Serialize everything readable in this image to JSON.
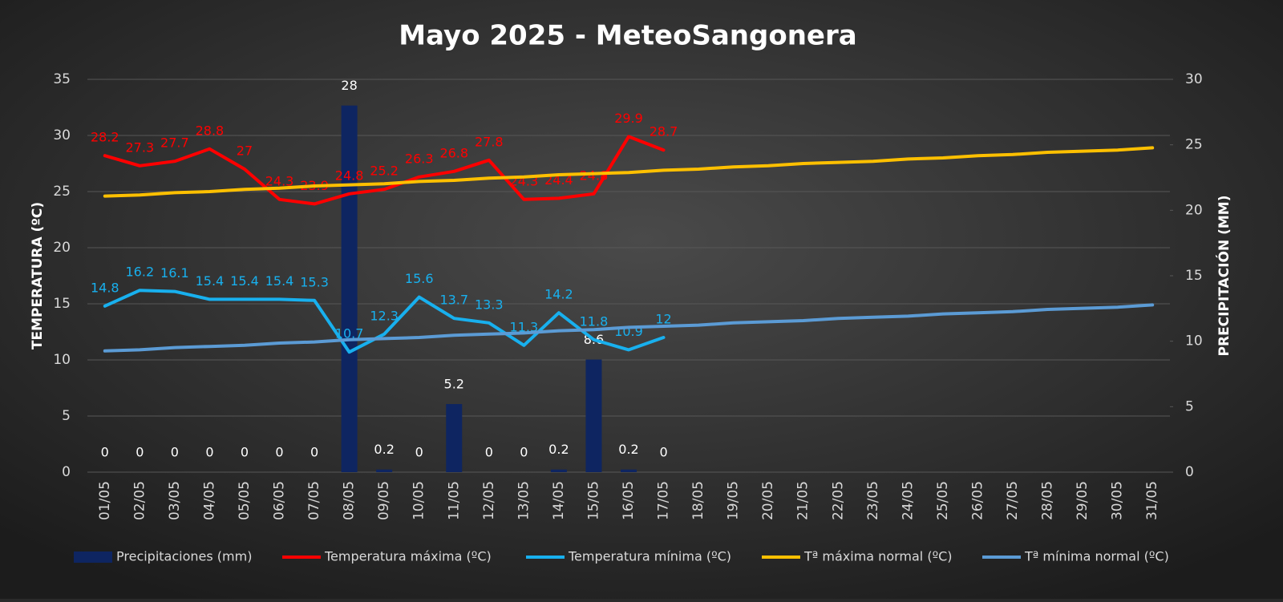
{
  "chart_data": {
    "type": "combo",
    "title": "Mayo 2025 - MeteoSangonera",
    "y_label": "TEMPERATURA (ºC)",
    "y2_label": "PRECIPITACIÓN (MM)",
    "categories": [
      "01/05",
      "02/05",
      "03/05",
      "04/05",
      "05/05",
      "06/05",
      "07/05",
      "08/05",
      "09/05",
      "10/05",
      "11/05",
      "12/05",
      "13/05",
      "14/05",
      "15/05",
      "16/05",
      "17/05",
      "18/05",
      "19/05",
      "20/05",
      "21/05",
      "22/05",
      "23/05",
      "24/05",
      "25/05",
      "26/05",
      "27/05",
      "28/05",
      "29/05",
      "30/05",
      "31/05"
    ],
    "ylim": [
      0,
      35
    ],
    "yticks": [
      0,
      5,
      10,
      15,
      20,
      25,
      30,
      35
    ],
    "y2lim": [
      0,
      30
    ],
    "y2ticks": [
      0,
      5,
      10,
      15,
      20,
      25,
      30
    ],
    "grid": true,
    "legend": "bottom",
    "series": [
      {
        "name": "Precipitaciones (mm)",
        "type": "bar",
        "axis": "y2",
        "color": "#0e2561",
        "data_labels": true,
        "values": [
          0,
          0,
          0,
          0,
          0,
          0,
          0,
          28,
          0.2,
          0,
          5.2,
          0,
          0,
          0.2,
          8.6,
          0.2,
          0,
          null,
          null,
          null,
          null,
          null,
          null,
          null,
          null,
          null,
          null,
          null,
          null,
          null,
          null
        ]
      },
      {
        "name": "Temperatura máxima (ºC)",
        "type": "line",
        "color": "#ff0000",
        "data_labels": true,
        "values": [
          28.2,
          27.3,
          27.7,
          28.8,
          27,
          24.3,
          23.9,
          24.8,
          25.2,
          26.3,
          26.8,
          27.8,
          24.3,
          24.4,
          24.8,
          29.9,
          28.7,
          null,
          null,
          null,
          null,
          null,
          null,
          null,
          null,
          null,
          null,
          null,
          null,
          null,
          null
        ]
      },
      {
        "name": "Temperatura mínima (ºC)",
        "type": "line",
        "color": "#18b0ee",
        "data_labels": true,
        "values": [
          14.8,
          16.2,
          16.1,
          15.4,
          15.4,
          15.4,
          15.3,
          10.7,
          12.3,
          15.6,
          13.7,
          13.3,
          11.3,
          14.2,
          11.8,
          10.9,
          12,
          null,
          null,
          null,
          null,
          null,
          null,
          null,
          null,
          null,
          null,
          null,
          null,
          null,
          null
        ]
      },
      {
        "name": "Tª máxima normal (ºC)",
        "type": "line",
        "color": "#ffc000",
        "data_labels": false,
        "values": [
          24.6,
          24.7,
          24.9,
          25.0,
          25.2,
          25.3,
          25.5,
          25.6,
          25.7,
          25.9,
          26.0,
          26.2,
          26.3,
          26.5,
          26.6,
          26.7,
          26.9,
          27.0,
          27.2,
          27.3,
          27.5,
          27.6,
          27.7,
          27.9,
          28.0,
          28.2,
          28.3,
          28.5,
          28.6,
          28.7,
          28.9
        ]
      },
      {
        "name": "Tª mínima normal (ºC)",
        "type": "line",
        "color": "#5b9bd5",
        "data_labels": false,
        "values": [
          10.8,
          10.9,
          11.1,
          11.2,
          11.3,
          11.5,
          11.6,
          11.8,
          11.9,
          12.0,
          12.2,
          12.3,
          12.4,
          12.6,
          12.7,
          12.9,
          13.0,
          13.1,
          13.3,
          13.4,
          13.5,
          13.7,
          13.8,
          13.9,
          14.1,
          14.2,
          14.3,
          14.5,
          14.6,
          14.7,
          14.9
        ]
      }
    ]
  }
}
